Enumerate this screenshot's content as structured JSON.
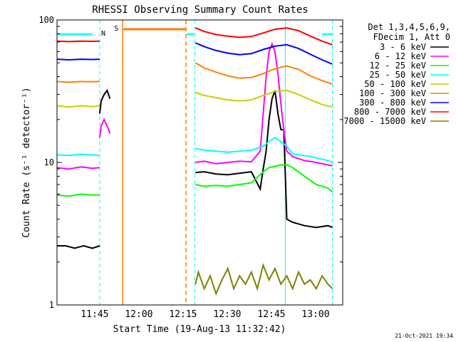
{
  "chart_data": {
    "type": "line",
    "title": "RHESSI Observing Summary Count Rates",
    "xlabel": "Start Time (19-Aug-13 11:32:42)",
    "ylabel": "Count Rate (s⁻¹ detector⁻¹)",
    "x_tick_labels": [
      "11:45",
      "12:00",
      "12:15",
      "12:30",
      "12:45",
      "13:00"
    ],
    "x_ticks_min": [
      12.8,
      27.8,
      42.8,
      57.8,
      72.8,
      87.8
    ],
    "x_range_min": [
      0,
      97
    ],
    "y_scale": "log",
    "ylim": [
      1,
      100
    ],
    "y_tick_labels": [
      "1",
      "10",
      "100"
    ],
    "legend_header": [
      "Det 1,3,4,5,6,9,",
      "FDecim 1, Att 0"
    ],
    "flag_labels": {
      "saa": "S",
      "night": "N"
    },
    "date_stamp": "21-Oct-2021 19:34",
    "intervals": {
      "cyan_lines_min": [
        0,
        14.5,
        46.8,
        77.5,
        93.5
      ],
      "orange_lines_min": [
        22.3,
        43.8
      ],
      "saa_bar_min": [
        22.3,
        43.8
      ]
    },
    "series": [
      {
        "name": "3 - 6 keV",
        "color": "#000000",
        "segments": [
          {
            "x": [
              0,
              3,
              6,
              9,
              12,
              14.5
            ],
            "y": [
              2.6,
              2.6,
              2.5,
              2.6,
              2.5,
              2.6
            ]
          },
          {
            "x": [
              14.5,
              15,
              16,
              17,
              18
            ],
            "y": [
              22,
              27,
              30,
              32,
              28
            ]
          },
          {
            "x": [
              47,
              50,
              54,
              58,
              62,
              66,
              69,
              70,
              71,
              72,
              73,
              74,
              75,
              76,
              77,
              78,
              80,
              84,
              88,
              92,
              93.5
            ],
            "y": [
              8.5,
              8.6,
              8.3,
              8.2,
              8.4,
              8.6,
              6.5,
              9,
              12,
              20,
              28,
              32,
              22,
              17,
              17,
              4.0,
              3.8,
              3.6,
              3.5,
              3.6,
              3.5
            ]
          }
        ]
      },
      {
        "name": "6 - 12 keV",
        "color": "#ff00ff",
        "segments": [
          {
            "x": [
              0,
              4,
              8,
              12,
              14.5
            ],
            "y": [
              9.2,
              9.0,
              9.3,
              9.1,
              9.2
            ]
          },
          {
            "x": [
              14.5,
              15,
              16,
              17,
              18
            ],
            "y": [
              15,
              18,
              20,
              18,
              16
            ]
          },
          {
            "x": [
              47,
              50,
              54,
              58,
              62,
              66,
              69,
              70,
              71,
              72,
              73,
              74,
              75,
              76,
              77,
              78,
              80,
              84,
              88,
              92,
              93.5
            ],
            "y": [
              10,
              10.2,
              9.8,
              10,
              10.2,
              10.1,
              12,
              22,
              40,
              60,
              68,
              60,
              42,
              26,
              17,
              12,
              11,
              10.3,
              10,
              9.6,
              9.5
            ]
          }
        ]
      },
      {
        "name": "12 - 25 keV",
        "color": "#00ff00",
        "segments": [
          {
            "x": [
              0,
              4,
              8,
              12,
              14.5
            ],
            "y": [
              5.9,
              5.8,
              6.0,
              5.9,
              5.9
            ]
          },
          {
            "x": [
              47,
              50,
              54,
              58,
              62,
              66,
              70,
              72,
              74,
              76,
              78,
              80,
              84,
              88,
              92,
              93.5
            ],
            "y": [
              7.0,
              6.8,
              6.9,
              6.8,
              7.0,
              7.2,
              8.6,
              9.2,
              9.4,
              9.6,
              9.6,
              9.2,
              8.0,
              7.0,
              6.6,
              6.2
            ]
          }
        ]
      },
      {
        "name": "25 - 50 keV",
        "color": "#00ffff",
        "segments": [
          {
            "x": [
              0,
              4,
              8,
              12,
              14.5
            ],
            "y": [
              11.3,
              11.2,
              11.4,
              11.3,
              11.2
            ]
          },
          {
            "x": [
              47,
              50,
              54,
              58,
              62,
              66,
              70,
              72,
              74,
              76,
              78,
              80,
              84,
              88,
              92,
              93.5
            ],
            "y": [
              12.5,
              12.2,
              12.0,
              11.8,
              12,
              12.2,
              13,
              14,
              15,
              14,
              13,
              11.5,
              11.2,
              10.8,
              10.3,
              10
            ]
          }
        ]
      },
      {
        "name": "50 - 100 keV",
        "color": "#cccc00",
        "segments": [
          {
            "x": [
              0,
              4,
              8,
              12,
              14.5
            ],
            "y": [
              25,
              24.5,
              25,
              24.6,
              25
            ]
          },
          {
            "x": [
              47,
              50,
              54,
              58,
              62,
              66,
              70,
              74,
              78,
              82,
              86,
              90,
              93.5
            ],
            "y": [
              31,
              29.5,
              28.5,
              27.5,
              27,
              27.5,
              29.5,
              31.5,
              32,
              30,
              27.5,
              25.5,
              24.5
            ]
          }
        ]
      },
      {
        "name": "100 - 300 keV",
        "color": "#ff8000",
        "segments": [
          {
            "x": [
              0,
              4,
              8,
              12,
              14.5
            ],
            "y": [
              37,
              36.5,
              37,
              36.8,
              37
            ]
          },
          {
            "x": [
              47,
              50,
              54,
              58,
              62,
              66,
              70,
              74,
              78,
              82,
              86,
              90,
              93.5
            ],
            "y": [
              50,
              46,
              43,
              40.5,
              39,
              39.5,
              42,
              45.5,
              47.5,
              45,
              40.5,
              37.5,
              35.5
            ]
          }
        ]
      },
      {
        "name": "300 - 800 keV",
        "color": "#0000ff",
        "segments": [
          {
            "x": [
              0,
              4,
              8,
              12,
              14.5
            ],
            "y": [
              53,
              52.5,
              53,
              52.8,
              53
            ]
          },
          {
            "x": [
              47,
              50,
              54,
              58,
              62,
              66,
              70,
              74,
              78,
              82,
              86,
              90,
              93.5
            ],
            "y": [
              69,
              65,
              61,
              58.5,
              57,
              58,
              62,
              65.5,
              67,
              63,
              57.5,
              52.5,
              49
            ]
          }
        ]
      },
      {
        "name": "800 - 7000 keV",
        "color": "#ff0000",
        "segments": [
          {
            "x": [
              0,
              4,
              8,
              12,
              14.5
            ],
            "y": [
              71,
              70.5,
              71,
              70.8,
              71
            ]
          },
          {
            "x": [
              47,
              50,
              54,
              58,
              62,
              66,
              70,
              74,
              78,
              82,
              86,
              90,
              93.5
            ],
            "y": [
              88,
              83,
              79,
              77,
              75.5,
              76.5,
              81,
              86,
              88,
              84,
              77,
              71,
              67
            ]
          }
        ]
      },
      {
        "name": "7000 - 15000 keV",
        "color": "#808000",
        "segments": [
          {
            "x": [
              47,
              48,
              50,
              52,
              54,
              56,
              58,
              60,
              62,
              64,
              66,
              68,
              70,
              72,
              74,
              76,
              78,
              80,
              82,
              84,
              86,
              88,
              90,
              92,
              93.5
            ],
            "y": [
              1.4,
              1.7,
              1.3,
              1.6,
              1.2,
              1.5,
              1.8,
              1.3,
              1.6,
              1.4,
              1.7,
              1.3,
              1.9,
              1.5,
              1.8,
              1.4,
              1.6,
              1.3,
              1.7,
              1.4,
              1.5,
              1.3,
              1.6,
              1.4,
              1.3
            ]
          }
        ]
      }
    ]
  }
}
